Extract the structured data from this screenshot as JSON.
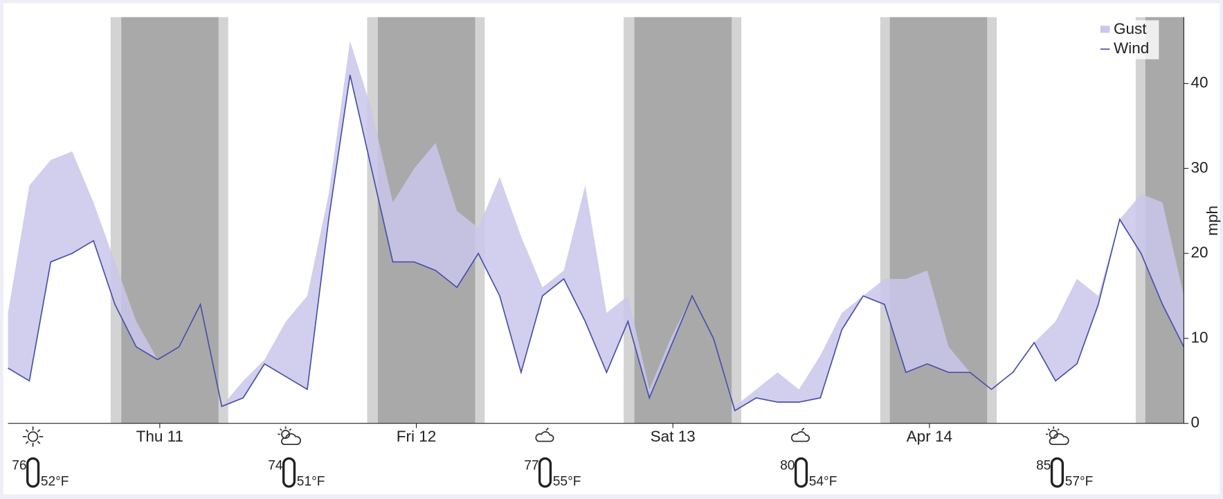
{
  "chart_data": {
    "type": "line",
    "x": [
      0,
      2,
      4,
      6,
      8,
      10,
      12,
      14,
      16,
      18,
      20,
      22,
      24,
      26,
      28,
      30,
      32,
      34,
      36,
      38,
      40,
      42,
      44,
      46,
      48,
      50,
      52,
      54,
      56,
      58,
      60,
      62,
      64,
      66,
      68,
      70,
      72,
      74,
      76,
      78,
      80,
      82,
      84,
      86,
      88,
      90,
      92,
      94,
      96,
      98,
      100,
      102,
      104,
      106,
      108,
      110
    ],
    "series": [
      {
        "name": "Gust",
        "color": "#c9c7ea",
        "values": [
          13,
          28,
          31,
          32,
          26,
          19,
          12,
          7.5,
          9,
          14,
          2,
          5,
          7.5,
          12,
          15,
          27,
          45,
          37,
          26,
          30,
          33,
          25,
          23,
          29,
          22,
          16,
          18,
          28,
          13,
          15,
          4,
          10,
          15,
          10,
          2,
          4,
          6,
          4,
          8,
          13,
          15,
          17,
          17,
          18,
          9,
          6,
          4,
          6,
          9.5,
          12,
          17,
          15,
          24,
          27,
          26,
          15
        ]
      },
      {
        "name": "Wind",
        "color": "#4a4fa8",
        "values": [
          6.5,
          5,
          19,
          20,
          21.5,
          14,
          9,
          7.5,
          9,
          14,
          2,
          3,
          7,
          5.5,
          4,
          24,
          41,
          30,
          19,
          19,
          18,
          16,
          20,
          15,
          6,
          15,
          17,
          12,
          6,
          12,
          3,
          9,
          15,
          10,
          1.5,
          3,
          2.5,
          2.5,
          3,
          11,
          15,
          14,
          6,
          7,
          6,
          6,
          4,
          6,
          9.5,
          5,
          7,
          14,
          24,
          20,
          14,
          9
        ]
      }
    ],
    "xlim": [
      0,
      110
    ],
    "xticks": [
      {
        "value": 14.2,
        "label": "Thu 11"
      },
      {
        "value": 38.2,
        "label": "Fri 12"
      },
      {
        "value": 62.2,
        "label": "Sat 13"
      },
      {
        "value": 86.2,
        "label": "Apr 14"
      }
    ],
    "ylim": [
      0,
      47.8
    ],
    "yticks": [
      0,
      10,
      20,
      30,
      40
    ],
    "ylabel": "mph",
    "legend": "upper right",
    "night_bands": [
      {
        "twilight": [
          9.6,
          20.6
        ],
        "dark": [
          10.6,
          19.7
        ]
      },
      {
        "twilight": [
          33.6,
          44.6
        ],
        "dark": [
          34.6,
          43.7
        ]
      },
      {
        "twilight": [
          57.6,
          68.6
        ],
        "dark": [
          58.6,
          67.7
        ]
      },
      {
        "twilight": [
          81.6,
          92.5
        ],
        "dark": [
          82.5,
          91.6
        ]
      },
      {
        "twilight": [
          105.5,
          110
        ],
        "dark": [
          106.4,
          110
        ]
      }
    ],
    "forecast": [
      {
        "high": "76",
        "low": "52°F"
      },
      {
        "high": "74",
        "low": "51°F"
      },
      {
        "high": "77",
        "low": "55°F"
      },
      {
        "high": "80",
        "low": "54°F"
      },
      {
        "high": "85",
        "low": "57°F"
      }
    ]
  }
}
